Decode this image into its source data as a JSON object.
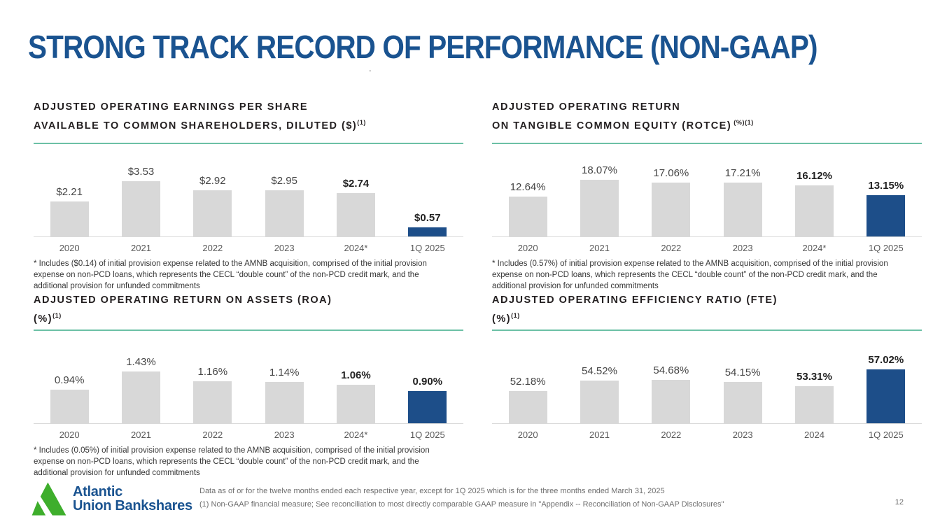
{
  "slide": {
    "title": "STRONG TRACK RECORD OF PERFORMANCE (NON-GAAP)",
    "stray_mark": ".",
    "page_number": "12",
    "footer_note1": "Data as of or for the twelve months ended each respective year, except for 1Q 2025 which is for the three months ended March 31, 2025",
    "footer_note2": "(1) Non-GAAP financial measure; See reconciliation to most directly comparable GAAP measure in \"Appendix -- Reconciliation of Non-GAAP Disclosures\"",
    "logo": {
      "line1": "Atlantic",
      "line2": "Union Bankshares"
    }
  },
  "colors": {
    "brand_blue": "#1a5390",
    "bar_blue": "#1d4e89",
    "bar_gray": "#d8d8d8",
    "accent_teal": "#6cc0a6",
    "logo_green": "#3eae2c"
  },
  "chart_data": [
    {
      "id": "adjusted-operating-eps",
      "type": "bar",
      "title_line1": "ADJUSTED OPERATING EARNINGS PER SHARE",
      "title_line2": "AVAILABLE TO COMMON SHAREHOLDERS, DILUTED ($)",
      "title_sup": "(1)",
      "categories": [
        "2020",
        "2021",
        "2022",
        "2023",
        "2024*",
        "1Q 2025"
      ],
      "values": [
        2.21,
        3.53,
        2.92,
        2.95,
        2.74,
        0.57
      ],
      "labels": [
        "$2.21",
        "$3.53",
        "$2.92",
        "$2.95",
        "$2.74",
        "$0.57"
      ],
      "ylim": [
        0,
        4.0
      ],
      "highlight_index": 5,
      "bold_label_indices": [
        4,
        5
      ],
      "legend": "none",
      "grid": false,
      "footnote": "*  Includes ($0.14) of initial provision expense related to the AMNB acquisition, comprised of the initial provision expense on non-PCD loans, which represents the CECL “double count” of the non-PCD credit mark, and the additional provision for unfunded commitments"
    },
    {
      "id": "adjusted-operating-rotce",
      "type": "bar",
      "title_line1": "ADJUSTED OPERATING RETURN",
      "title_line2": "ON TANGIBLE COMMON EQUITY (ROTCE)",
      "title_sup": " (%)(1)",
      "categories": [
        "2020",
        "2021",
        "2022",
        "2023",
        "2024*",
        "1Q 2025"
      ],
      "values": [
        12.64,
        18.07,
        17.06,
        17.21,
        16.12,
        13.15
      ],
      "labels": [
        "12.64%",
        "18.07%",
        "17.06%",
        "17.21%",
        "16.12%",
        "13.15%"
      ],
      "ylim": [
        0,
        20
      ],
      "highlight_index": 5,
      "bold_label_indices": [
        4,
        5
      ],
      "legend": "none",
      "grid": false,
      "footnote": "*  Includes (0.57%) of initial provision expense related to the AMNB acquisition, comprised of the initial provision expense on non-PCD loans, which represents the CECL “double count” of the non-PCD credit mark, and the additional provision for unfunded commitments"
    },
    {
      "id": "adjusted-operating-roa",
      "type": "bar",
      "title_line1": "ADJUSTED OPERATING RETURN ON ASSETS (ROA)",
      "title_line2": "(%)",
      "title_sup": "(1)",
      "categories": [
        "2020",
        "2021",
        "2022",
        "2023",
        "2024*",
        "1Q 2025"
      ],
      "values": [
        0.94,
        1.43,
        1.16,
        1.14,
        1.06,
        0.9
      ],
      "labels": [
        "0.94%",
        "1.43%",
        "1.16%",
        "1.14%",
        "1.06%",
        "0.90%"
      ],
      "ylim": [
        0,
        1.75
      ],
      "highlight_index": 5,
      "bold_label_indices": [
        4,
        5
      ],
      "legend": "none",
      "grid": false,
      "footnote": "*  Includes (0.05%) of initial provision expense related to the AMNB acquisition, comprised of the initial provision expense on non-PCD loans, which represents the CECL “double count” of the non-PCD credit mark, and the additional provision for unfunded commitments"
    },
    {
      "id": "adjusted-operating-efficiency-ratio",
      "type": "bar",
      "title_line1": "ADJUSTED OPERATING EFFICIENCY RATIO (FTE)",
      "title_line2": "(%)",
      "title_sup": "(1)",
      "categories": [
        "2020",
        "2021",
        "2022",
        "2023",
        "2024",
        "1Q 2025"
      ],
      "values": [
        52.18,
        54.52,
        54.68,
        54.15,
        53.31,
        57.02
      ],
      "labels": [
        "52.18%",
        "54.52%",
        "54.68%",
        "54.15%",
        "53.31%",
        "57.02%"
      ],
      "ylim": [
        45,
        59
      ],
      "highlight_index": 5,
      "bold_label_indices": [
        4,
        5
      ],
      "legend": "none",
      "grid": false,
      "footnote": ""
    }
  ]
}
